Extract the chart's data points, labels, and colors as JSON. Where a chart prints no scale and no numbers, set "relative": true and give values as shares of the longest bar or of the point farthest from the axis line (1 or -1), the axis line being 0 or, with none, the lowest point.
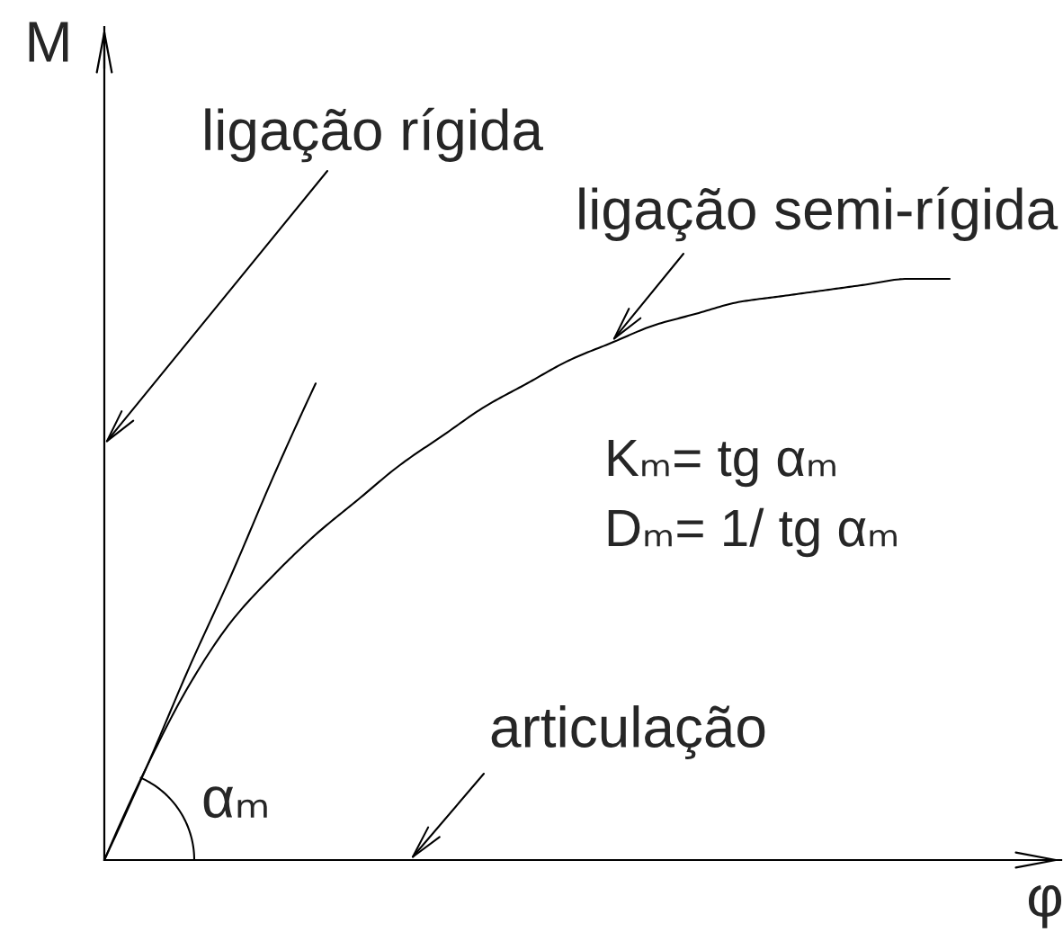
{
  "chart_data": {
    "type": "line",
    "relative": true,
    "xlabel": "φ",
    "ylabel": "M",
    "categories": [
      null,
      null,
      null,
      null,
      null,
      null,
      null,
      null,
      null,
      null,
      null,
      null,
      null,
      null,
      null,
      null,
      null,
      null,
      null,
      null,
      null
    ],
    "series": [
      {
        "color": "#000000",
        "values": [
          0,
          0.16,
          0.3,
          0.41,
          0.49,
          0.56,
          0.62,
          0.68,
          0.73,
          0.78,
          0.82,
          0.86,
          0.89,
          0.92,
          0.94,
          0.96,
          0.97,
          0.98,
          0.99,
          1,
          1
        ]
      },
      {
        "color": "#000000",
        "values": [
          0,
          0.16,
          0.33,
          0.49,
          0.66,
          0.82,
          null,
          null,
          null,
          null,
          null,
          null,
          null,
          null,
          null,
          null,
          null,
          null,
          null,
          null,
          null
        ]
      }
    ],
    "annotations": [
      "ligação rígida",
      "ligação semi-rígida",
      "Kₘ= tg αₘ",
      "Dₘ= 1/ tg αₘ",
      "articulação",
      "αₘ"
    ]
  }
}
